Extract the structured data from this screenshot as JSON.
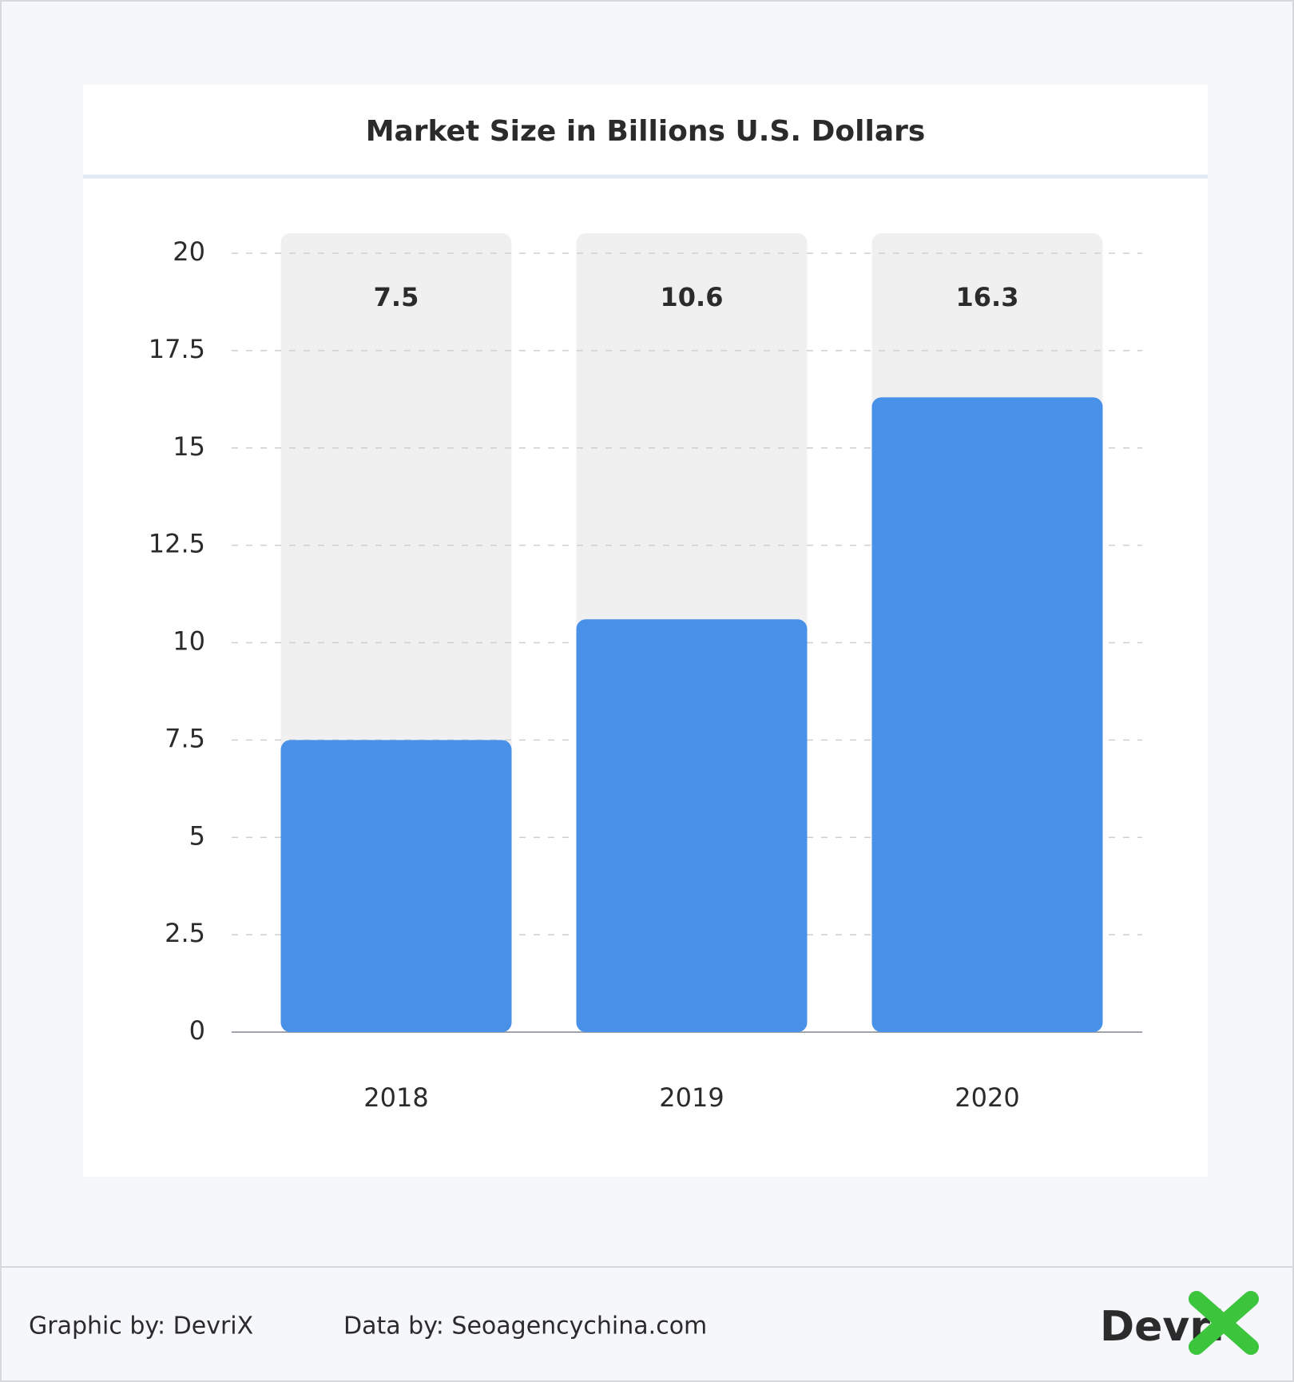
{
  "chart_data": {
    "type": "bar",
    "title": "Market Size in Billions U.S. Dollars",
    "categories": [
      "2018",
      "2019",
      "2020"
    ],
    "values": [
      7.5,
      10.6,
      16.3
    ],
    "color": "#4890e8",
    "ylim": [
      0,
      20
    ],
    "yticks": [
      0,
      2.5,
      5,
      7.5,
      10,
      12.5,
      15,
      17.5,
      20
    ],
    "grid": true
  },
  "footer": {
    "graphic_by": "Graphic by: DevriX",
    "data_by": "Data by: Seoagencychina.com",
    "logo": "Devri"
  }
}
